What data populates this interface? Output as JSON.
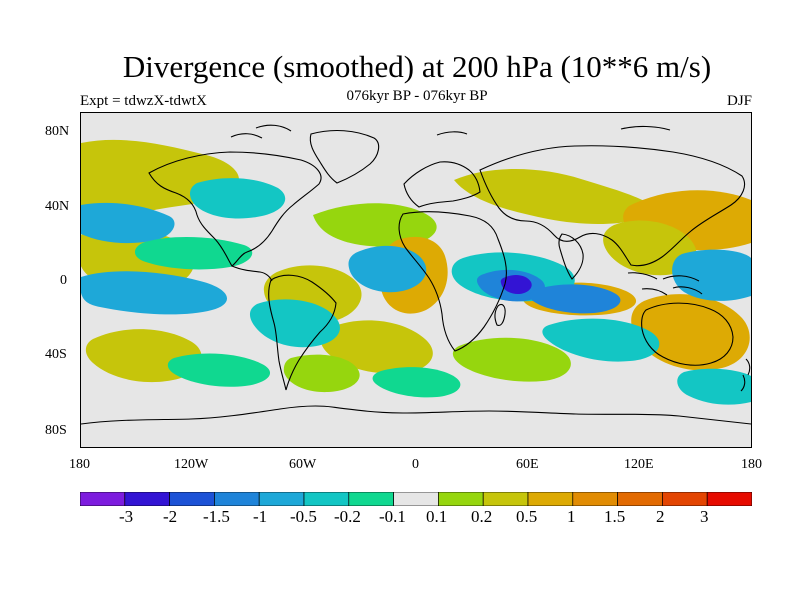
{
  "title": "Divergence (smoothed) at 200 hPa (10**6 m/s)",
  "subtitle": "076kyr BP - 076kyr BP",
  "experiment": "Expt = tdwzX-tdwtX",
  "season": "DJF",
  "colors": {
    "no_data_gray": "#e6e6e6"
  },
  "map": {
    "projection": "cylindrical equidistant",
    "lon_range": [
      -180,
      180
    ],
    "lat_range": [
      -90,
      90
    ]
  },
  "axes": {
    "x_ticks": [
      "180",
      "120W",
      "60W",
      "0",
      "60E",
      "120E",
      "180"
    ],
    "y_ticks": [
      "80N",
      "40N",
      "0",
      "40S",
      "80S"
    ]
  },
  "colorbar": {
    "colors": [
      "#7d1cde",
      "#3314d4",
      "#1d52d6",
      "#1f84d9",
      "#1ea8d8",
      "#13c6c4",
      "#10d890",
      "#e6e6e6",
      "#96d60e",
      "#c6c50b",
      "#ddaa04",
      "#e18c03",
      "#e26a01",
      "#e34502",
      "#e60b00"
    ],
    "labels": [
      "-3",
      "-2",
      "-1.5",
      "-1",
      "-0.5",
      "-0.2",
      "-0.1",
      "0.1",
      "0.2",
      "0.5",
      "1",
      "1.5",
      "2",
      "3"
    ]
  }
}
